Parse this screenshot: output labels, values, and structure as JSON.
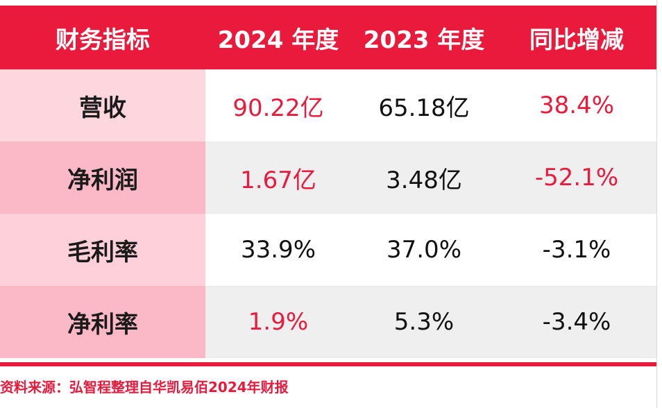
{
  "table": {
    "headers": [
      "财务指标",
      "2024 年度",
      "2023 年度",
      "同比增减"
    ],
    "rows": [
      {
        "label": "营收",
        "y2024": "90.22亿",
        "y2023": "65.18亿",
        "yoy": "38.4%"
      },
      {
        "label": "净利润",
        "y2024": "1.67亿",
        "y2023": "3.48亿",
        "yoy": "-52.1%"
      },
      {
        "label": "毛利率",
        "y2024": "33.9%",
        "y2023": "37.0%",
        "yoy": "-3.1%"
      },
      {
        "label": "净利率",
        "y2024": "1.9%",
        "y2023": "5.3%",
        "yoy": "-3.4%"
      }
    ]
  },
  "source": "资料来源：弘智程整理自华凯易佰2024年财报",
  "colors": {
    "accent": "#ea1a3c",
    "label_light": "#fdd6de",
    "label_dark": "#fbb8c6",
    "row_gray": "#efefef"
  }
}
